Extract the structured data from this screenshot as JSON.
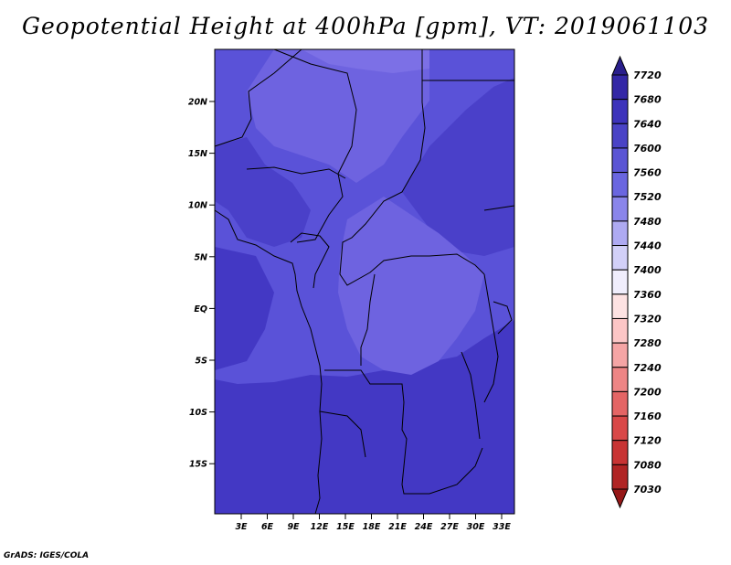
{
  "title": "Geopotential Height at 400hPa [gpm], VT: 2019061103",
  "credit": "GrADS: IGES/COLA",
  "map": {
    "lat_ticks": [
      "20N",
      "15N",
      "10N",
      "5N",
      "EQ",
      "5S",
      "10S",
      "15S"
    ],
    "lon_ticks": [
      "3E",
      "6E",
      "9E",
      "12E",
      "15E",
      "18E",
      "21E",
      "24E",
      "27E",
      "30E",
      "33E"
    ],
    "colors": {
      "lowest_band": "#3f3fc8",
      "mid_band": "#5a52d8",
      "high_band": "#6e63e0",
      "top_band": "#7c70e6",
      "coastline": "#000000"
    }
  },
  "colorbar": {
    "labels": [
      "7720",
      "7680",
      "7640",
      "7600",
      "7560",
      "7520",
      "7480",
      "7440",
      "7400",
      "7360",
      "7320",
      "7280",
      "7240",
      "7200",
      "7160",
      "7120",
      "7080",
      "7030"
    ],
    "colors": [
      "#2a1f8c",
      "#3327a6",
      "#3d33bb",
      "#4a43c6",
      "#5b55d4",
      "#6a66e0",
      "#8a85ea",
      "#aeaaf2",
      "#d2d0f8",
      "#f0eefc",
      "#fde2e2",
      "#fcc6c6",
      "#f5a5a5",
      "#ee8585",
      "#e46565",
      "#d94848",
      "#c83434",
      "#b02424",
      "#961818"
    ]
  }
}
